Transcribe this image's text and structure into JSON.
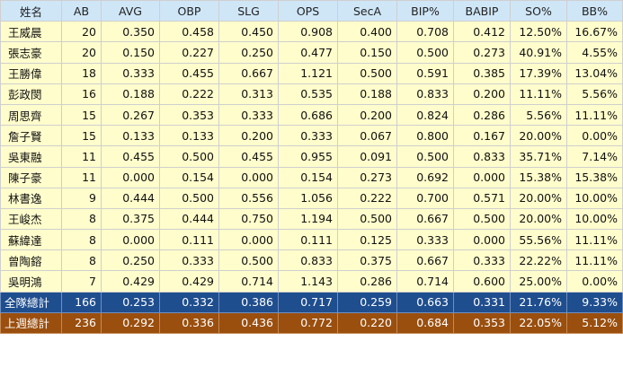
{
  "columns": [
    "姓名",
    "AB",
    "AVG",
    "OBP",
    "SLG",
    "OPS",
    "SecA",
    "BIP%",
    "BABIP",
    "SO%",
    "BB%"
  ],
  "players": [
    [
      "王威晨",
      "20",
      "0.350",
      "0.458",
      "0.450",
      "0.908",
      "0.400",
      "0.708",
      "0.412",
      "12.50%",
      "16.67%"
    ],
    [
      "張志豪",
      "20",
      "0.150",
      "0.227",
      "0.250",
      "0.477",
      "0.150",
      "0.500",
      "0.273",
      "40.91%",
      "4.55%"
    ],
    [
      "王勝偉",
      "18",
      "0.333",
      "0.455",
      "0.667",
      "1.121",
      "0.500",
      "0.591",
      "0.385",
      "17.39%",
      "13.04%"
    ],
    [
      "彭政閔",
      "16",
      "0.188",
      "0.222",
      "0.313",
      "0.535",
      "0.188",
      "0.833",
      "0.200",
      "11.11%",
      "5.56%"
    ],
    [
      "周思齊",
      "15",
      "0.267",
      "0.353",
      "0.333",
      "0.686",
      "0.200",
      "0.824",
      "0.286",
      "5.56%",
      "11.11%"
    ],
    [
      "詹子賢",
      "15",
      "0.133",
      "0.133",
      "0.200",
      "0.333",
      "0.067",
      "0.800",
      "0.167",
      "20.00%",
      "0.00%"
    ],
    [
      "吳東融",
      "11",
      "0.455",
      "0.500",
      "0.455",
      "0.955",
      "0.091",
      "0.500",
      "0.833",
      "35.71%",
      "7.14%"
    ],
    [
      "陳子豪",
      "11",
      "0.000",
      "0.154",
      "0.000",
      "0.154",
      "0.273",
      "0.692",
      "0.000",
      "15.38%",
      "15.38%"
    ],
    [
      "林書逸",
      "9",
      "0.444",
      "0.500",
      "0.556",
      "1.056",
      "0.222",
      "0.700",
      "0.571",
      "20.00%",
      "10.00%"
    ],
    [
      "王峻杰",
      "8",
      "0.375",
      "0.444",
      "0.750",
      "1.194",
      "0.500",
      "0.667",
      "0.500",
      "20.00%",
      "10.00%"
    ],
    [
      "蘇緯達",
      "8",
      "0.000",
      "0.111",
      "0.000",
      "0.111",
      "0.125",
      "0.333",
      "0.000",
      "55.56%",
      "11.11%"
    ],
    [
      "曾陶鎔",
      "8",
      "0.250",
      "0.333",
      "0.500",
      "0.833",
      "0.375",
      "0.667",
      "0.333",
      "22.22%",
      "11.11%"
    ],
    [
      "吳明鴻",
      "7",
      "0.429",
      "0.429",
      "0.714",
      "1.143",
      "0.286",
      "0.714",
      "0.600",
      "25.00%",
      "0.00%"
    ]
  ],
  "team_total": [
    "全隊總計",
    "166",
    "0.253",
    "0.332",
    "0.386",
    "0.717",
    "0.259",
    "0.663",
    "0.331",
    "21.76%",
    "9.33%"
  ],
  "last_week_total": [
    "上週總計",
    "236",
    "0.292",
    "0.336",
    "0.436",
    "0.772",
    "0.220",
    "0.684",
    "0.353",
    "22.05%",
    "5.12%"
  ],
  "colors": {
    "header_bg": "#cfe6f7",
    "row_bg": "#fffdcc",
    "team_total_bg": "#1f4e8f",
    "last_week_total_bg": "#9a4f0f"
  }
}
